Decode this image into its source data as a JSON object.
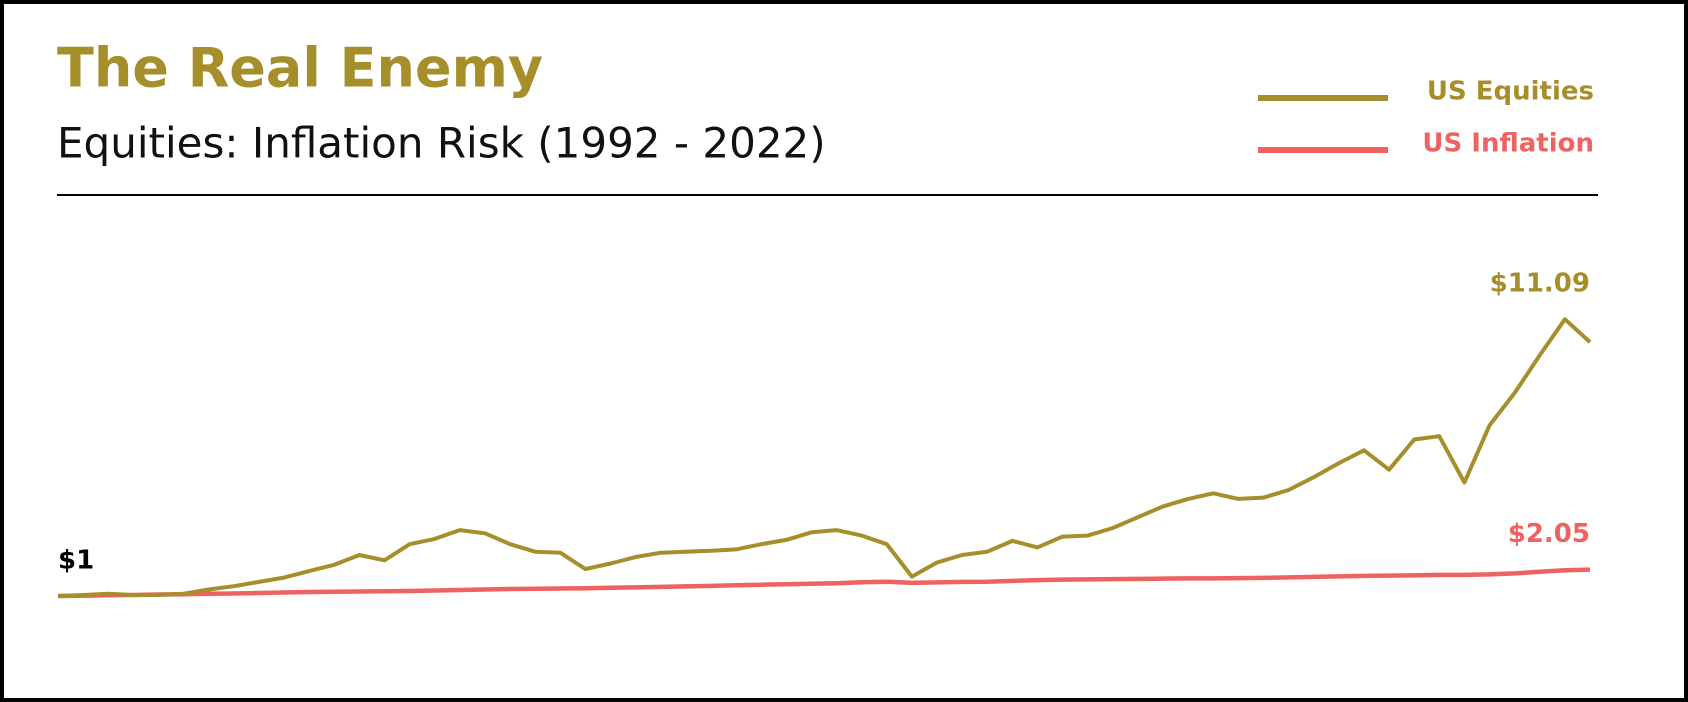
{
  "chart_data": {
    "type": "line",
    "title": "The Real Enemy",
    "subtitle": "Equities: Inflation Risk (1992 - 2022)",
    "ylim": [
      1,
      13
    ],
    "legend": "top-right",
    "series": [
      {
        "name": "US Equities",
        "color": "#a68f2b",
        "values": [
          1.0,
          1.04,
          1.09,
          1.04,
          1.04,
          1.09,
          1.26,
          1.39,
          1.56,
          1.73,
          1.99,
          2.24,
          2.63,
          2.42,
          3.06,
          3.27,
          3.62,
          3.49,
          3.06,
          2.76,
          2.72,
          2.07,
          2.29,
          2.55,
          2.72,
          2.76,
          2.8,
          2.85,
          3.06,
          3.23,
          3.53,
          3.62,
          3.4,
          3.06,
          1.77,
          2.33,
          2.63,
          2.76,
          3.19,
          2.93,
          3.36,
          3.4,
          3.7,
          4.13,
          4.56,
          4.86,
          5.08,
          4.86,
          4.91,
          5.21,
          5.72,
          6.28,
          6.79,
          6.02,
          7.22,
          7.35,
          5.51,
          7.78,
          9.07,
          10.57,
          12.0,
          11.09
        ],
        "value_labels": [
          "$1",
          null,
          null,
          null,
          null,
          null,
          null,
          null,
          null,
          null,
          null,
          null,
          null,
          null,
          null,
          null,
          null,
          null,
          null,
          null,
          null,
          null,
          null,
          null,
          null,
          null,
          null,
          null,
          null,
          null,
          null,
          null,
          null,
          null,
          null,
          null,
          null,
          null,
          null,
          null,
          null,
          null,
          null,
          null,
          null,
          null,
          null,
          null,
          null,
          null,
          null,
          null,
          null,
          null,
          null,
          null,
          null,
          null,
          null,
          null,
          null,
          "$11.09"
        ]
      },
      {
        "name": "US Inflation",
        "color": "#ef6262",
        "values": [
          1.0,
          1.01,
          1.03,
          1.04,
          1.06,
          1.07,
          1.09,
          1.1,
          1.12,
          1.14,
          1.16,
          1.17,
          1.18,
          1.19,
          1.2,
          1.22,
          1.24,
          1.26,
          1.28,
          1.29,
          1.3,
          1.31,
          1.33,
          1.34,
          1.36,
          1.38,
          1.4,
          1.43,
          1.45,
          1.47,
          1.49,
          1.51,
          1.55,
          1.57,
          1.52,
          1.54,
          1.56,
          1.57,
          1.6,
          1.63,
          1.65,
          1.66,
          1.67,
          1.68,
          1.69,
          1.7,
          1.7,
          1.71,
          1.72,
          1.74,
          1.76,
          1.78,
          1.8,
          1.81,
          1.82,
          1.84,
          1.84,
          1.86,
          1.9,
          1.96,
          2.02,
          2.05
        ],
        "value_labels": [
          null,
          null,
          null,
          null,
          null,
          null,
          null,
          null,
          null,
          null,
          null,
          null,
          null,
          null,
          null,
          null,
          null,
          null,
          null,
          null,
          null,
          null,
          null,
          null,
          null,
          null,
          null,
          null,
          null,
          null,
          null,
          null,
          null,
          null,
          null,
          null,
          null,
          null,
          null,
          null,
          null,
          null,
          null,
          null,
          null,
          null,
          null,
          null,
          null,
          null,
          null,
          null,
          null,
          null,
          null,
          null,
          null,
          null,
          null,
          null,
          null,
          "$2.05"
        ]
      }
    ]
  }
}
